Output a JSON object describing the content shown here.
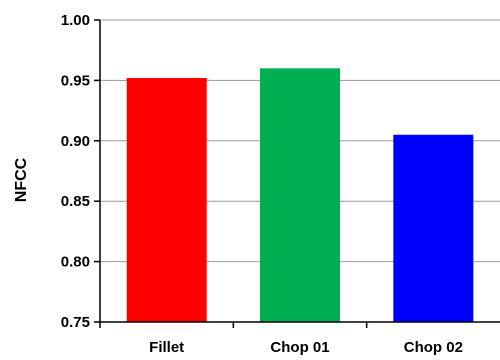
{
  "chart_data": {
    "type": "bar",
    "title": "",
    "xlabel": "",
    "ylabel": "NFCC",
    "categories": [
      "Fillet",
      "Chop 01",
      "Chop 02"
    ],
    "values": [
      0.952,
      0.96,
      0.905
    ],
    "colors": [
      "#ff0000",
      "#00b050",
      "#0000ff"
    ],
    "ylim": [
      0.75,
      1.0
    ],
    "yticks": [
      0.75,
      0.8,
      0.85,
      0.9,
      0.95,
      1.0
    ],
    "ytick_labels": [
      "0.75",
      "0.80",
      "0.85",
      "0.90",
      "0.95",
      "1.00"
    ],
    "grid": true,
    "legend": "none"
  }
}
